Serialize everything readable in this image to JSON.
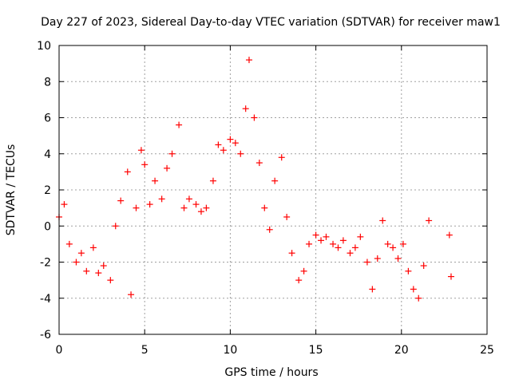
{
  "chart_data": {
    "type": "scatter",
    "title": "Day 227 of 2023, Sidereal Day-to-day VTEC variation (SDTVAR) for receiver maw1",
    "xlabel": "GPS time / hours",
    "ylabel": "SDTVAR / TECUs",
    "xlim": [
      0,
      25
    ],
    "ylim": [
      -6,
      10
    ],
    "xticks": [
      "0",
      "5",
      "10",
      "15",
      "20",
      "25"
    ],
    "yticks": [
      "-6",
      "-4",
      "-2",
      "0",
      "2",
      "4",
      "6",
      "8",
      "10"
    ],
    "grid": true,
    "marker": "+",
    "colors": {
      "series": "#ff0000",
      "grid": "#a0a0a0"
    },
    "series": [
      {
        "name": "SDTVAR",
        "x": [
          0,
          0.3,
          0.6,
          1.0,
          1.3,
          1.6,
          2.0,
          2.3,
          2.6,
          3.0,
          3.3,
          3.6,
          4.0,
          4.2,
          4.5,
          4.8,
          5.0,
          5.3,
          5.6,
          6.0,
          6.3,
          6.6,
          7.0,
          7.3,
          7.6,
          8.0,
          8.3,
          8.6,
          9.0,
          9.3,
          9.6,
          10.0,
          10.3,
          10.6,
          10.9,
          11.1,
          11.4,
          11.7,
          12.0,
          12.3,
          12.6,
          13.0,
          13.3,
          13.6,
          14.0,
          14.3,
          14.6,
          15.0,
          15.3,
          15.6,
          16.0,
          16.3,
          16.6,
          17.0,
          17.3,
          17.6,
          18.0,
          18.3,
          18.6,
          18.9,
          19.2,
          19.5,
          19.8,
          20.1,
          20.4,
          20.7,
          21.0,
          21.3,
          21.6,
          22.8,
          22.9
        ],
        "y": [
          0.5,
          1.2,
          -1.0,
          -2.0,
          -1.5,
          -2.5,
          -1.2,
          -2.6,
          -2.2,
          -3.0,
          0.0,
          1.4,
          3.0,
          -3.8,
          1.0,
          4.2,
          3.4,
          1.2,
          2.5,
          1.5,
          3.2,
          4.0,
          5.6,
          1.0,
          1.5,
          1.2,
          0.8,
          1.0,
          2.5,
          4.5,
          4.2,
          4.8,
          4.6,
          4.0,
          6.5,
          9.2,
          6.0,
          3.5,
          1.0,
          -0.2,
          2.5,
          3.8,
          0.5,
          -1.5,
          -3.0,
          -2.5,
          -1.0,
          -0.5,
          -0.8,
          -0.6,
          -1.0,
          -1.2,
          -0.8,
          -1.5,
          -1.2,
          -0.6,
          -2.0,
          -3.5,
          -1.8,
          0.3,
          -1.0,
          -1.2,
          -1.8,
          -1.0,
          -2.5,
          -3.5,
          -4.0,
          -2.2,
          0.3,
          -0.5,
          -2.8
        ]
      }
    ]
  }
}
